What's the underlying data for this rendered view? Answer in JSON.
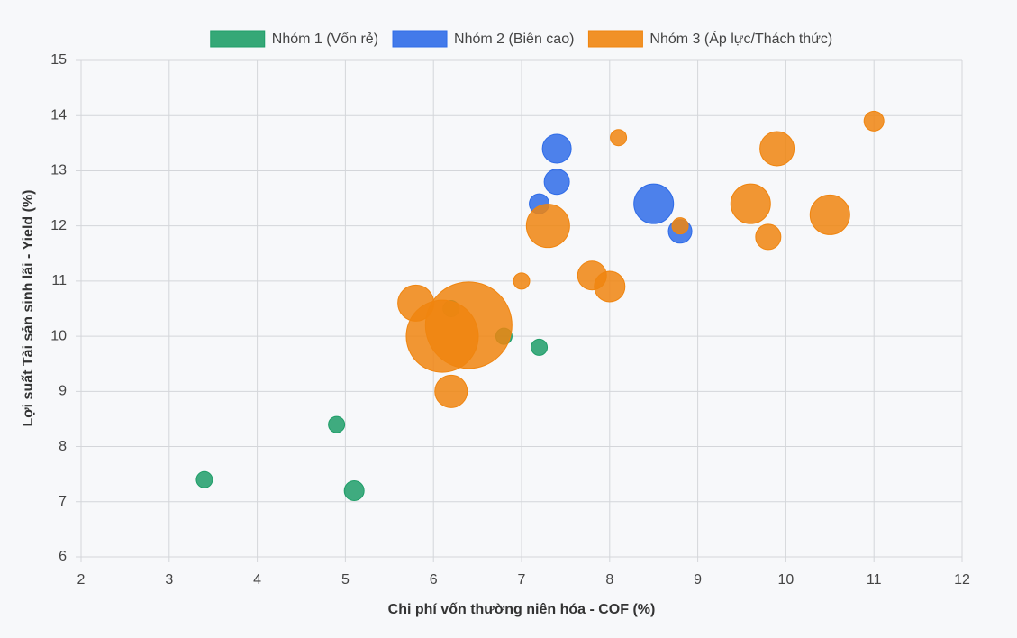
{
  "chart_data": {
    "type": "bubble",
    "x_label": "Chi phí vốn thường niên hóa - COF (%)",
    "y_label": "Lợi suất Tài sản sinh lãi - Yield (%)",
    "xlim": [
      2,
      12
    ],
    "xticks": [
      2,
      3,
      4,
      5,
      6,
      7,
      8,
      9,
      10,
      11,
      12
    ],
    "ylim": [
      6,
      15
    ],
    "yticks": [
      6,
      7,
      8,
      9,
      10,
      11,
      12,
      13,
      14,
      15
    ],
    "grid": true,
    "legend": "top",
    "series": [
      {
        "name": "Nhóm 1 (Vốn rẻ)",
        "color": "#1f9e68",
        "x": [
          3.4,
          4.9,
          5.1,
          6.2,
          6.8,
          7.2
        ],
        "values": [
          7.4,
          8.4,
          7.2,
          10.5,
          10.0,
          9.8
        ],
        "sizes": [
          9,
          9,
          11,
          9,
          9,
          9
        ]
      },
      {
        "name": "Nhóm 2 (Biên cao)",
        "color": "#2f6ce8",
        "x": [
          7.4,
          7.4,
          7.2,
          8.5,
          8.8
        ],
        "values": [
          13.4,
          12.8,
          12.4,
          12.4,
          11.9
        ],
        "sizes": [
          16,
          14,
          11,
          22,
          13
        ]
      },
      {
        "name": "Nhóm 3 (Áp lực/Thách thức)",
        "color": "#f0850f",
        "x": [
          6.4,
          6.1,
          5.8,
          6.2,
          7.0,
          7.3,
          7.8,
          8.0,
          8.1,
          8.8,
          9.6,
          9.8,
          9.9,
          10.5,
          11.0
        ],
        "values": [
          10.2,
          10.0,
          10.6,
          9.0,
          11.0,
          12.0,
          11.1,
          10.9,
          13.6,
          12.0,
          12.4,
          11.8,
          13.4,
          12.2,
          13.9
        ],
        "sizes": [
          48,
          40,
          20,
          18,
          9,
          24,
          16,
          17,
          9,
          9,
          22,
          14,
          19,
          22,
          11
        ]
      }
    ]
  }
}
